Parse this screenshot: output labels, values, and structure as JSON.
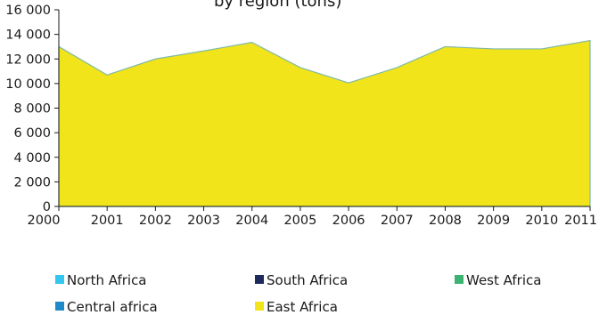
{
  "chart_data": {
    "type": "area",
    "title": "by region (tons)",
    "x": [
      2000,
      2001,
      2002,
      2003,
      2004,
      2005,
      2006,
      2007,
      2008,
      2009,
      2010,
      2011
    ],
    "ylim": [
      0,
      16000
    ],
    "yticks": [
      0,
      2000,
      4000,
      6000,
      8000,
      10000,
      12000,
      14000,
      16000
    ],
    "ytick_labels": [
      "0",
      "2 000",
      "4 000",
      "6 000",
      "8 000",
      "10 000",
      "12 000",
      "14 000",
      "16 000"
    ],
    "series": [
      {
        "name": "North Africa",
        "color": "#35c6f0",
        "values": [
          0,
          0,
          0,
          0,
          0,
          0,
          0,
          0,
          0,
          0,
          0,
          0
        ]
      },
      {
        "name": "South Africa",
        "color": "#1f2a5c",
        "values": [
          0,
          0,
          0,
          0,
          0,
          0,
          0,
          0,
          0,
          0,
          0,
          0
        ]
      },
      {
        "name": "West Africa",
        "color": "#3cb371",
        "values": [
          0,
          0,
          0,
          0,
          0,
          0,
          0,
          0,
          0,
          0,
          0,
          0
        ]
      },
      {
        "name": "Central africa",
        "color": "#1f8ac9",
        "values": [
          0,
          0,
          0,
          0,
          0,
          0,
          0,
          0,
          0,
          0,
          0,
          0
        ]
      },
      {
        "name": "East Africa",
        "color": "#f2e41a",
        "values": [
          13000,
          10700,
          12000,
          12650,
          13350,
          11300,
          10050,
          11300,
          13000,
          12820,
          12820,
          13500
        ]
      }
    ],
    "legend_position": "bottom",
    "grid": false
  }
}
